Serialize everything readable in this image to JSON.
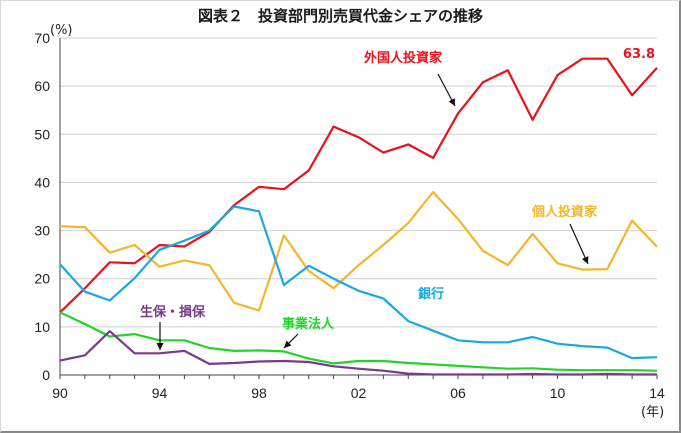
{
  "chart_data": {
    "type": "line",
    "title": "図表２　投資部門別売買代金シェアの推移",
    "y_unit": "(%)",
    "x_unit": "(年)",
    "ylim": [
      0,
      70
    ],
    "y_ticks": [
      "0",
      "10",
      "20",
      "30",
      "40",
      "50",
      "60",
      "70"
    ],
    "x_ticks": [
      {
        "year": 1990,
        "label": "90"
      },
      {
        "year": 1994,
        "label": "94"
      },
      {
        "year": 1998,
        "label": "98"
      },
      {
        "year": 2002,
        "label": "02"
      },
      {
        "year": 2006,
        "label": "06"
      },
      {
        "year": 2010,
        "label": "10"
      },
      {
        "year": 2014,
        "label": "14"
      }
    ],
    "x": [
      1990,
      1991,
      1992,
      1993,
      1994,
      1995,
      1996,
      1997,
      1998,
      1999,
      2000,
      2001,
      2002,
      2003,
      2004,
      2005,
      2006,
      2007,
      2008,
      2009,
      2010,
      2011,
      2012,
      2013,
      2014
    ],
    "grid": "horizontal",
    "series": [
      {
        "name": "外国人投資家",
        "color": "#e8111c",
        "values": [
          13.0,
          18.0,
          23.4,
          23.2,
          27.0,
          26.7,
          29.7,
          35.3,
          39.1,
          38.6,
          42.5,
          51.6,
          49.4,
          46.2,
          47.9,
          45.1,
          54.3,
          60.8,
          63.3,
          53.0,
          62.3,
          65.7,
          65.7,
          58.1,
          63.8
        ],
        "end_label": "63.8"
      },
      {
        "name": "個人投資家",
        "color": "#f5b52a",
        "values": [
          30.9,
          30.7,
          25.4,
          27.0,
          22.5,
          23.8,
          22.8,
          15.0,
          13.4,
          29.0,
          21.6,
          18.0,
          22.8,
          27.0,
          31.6,
          38.0,
          32.4,
          25.8,
          22.8,
          29.3,
          23.2,
          21.9,
          22.0,
          32.1,
          26.6
        ]
      },
      {
        "name": "銀行",
        "color": "#1aa8e0",
        "values": [
          23.0,
          17.3,
          15.5,
          20.1,
          26.0,
          27.9,
          30.0,
          35.0,
          34.0,
          18.7,
          22.7,
          20.0,
          17.5,
          15.9,
          11.2,
          9.2,
          7.2,
          6.8,
          6.8,
          7.9,
          6.5,
          6.0,
          5.7,
          3.5,
          3.7
        ]
      },
      {
        "name": "事業法人",
        "color": "#22d42a",
        "values": [
          13.0,
          10.6,
          8.0,
          8.5,
          7.2,
          7.2,
          5.6,
          5.0,
          5.1,
          4.9,
          3.4,
          2.4,
          2.9,
          2.9,
          2.5,
          2.2,
          1.9,
          1.6,
          1.3,
          1.4,
          1.1,
          1.0,
          1.0,
          1.0,
          0.9
        ]
      },
      {
        "name": "生保・損保",
        "color": "#7a3a8c",
        "values": [
          3.0,
          4.1,
          9.1,
          4.5,
          4.5,
          5.0,
          2.3,
          2.5,
          2.8,
          2.9,
          2.7,
          1.8,
          1.3,
          0.9,
          0.3,
          0.1,
          0.1,
          0.1,
          0.1,
          0.2,
          0.1,
          0.1,
          0.2,
          0.1,
          0.1
        ]
      }
    ]
  }
}
